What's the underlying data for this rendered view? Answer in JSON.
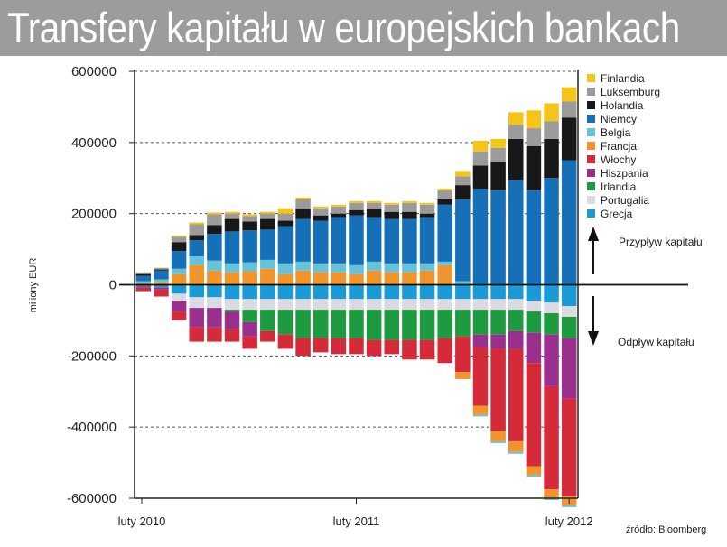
{
  "chart_data": {
    "type": "bar",
    "stacked": true,
    "title": "Transfery kapitału w europejskich bankach",
    "ylabel": "miliony EUR",
    "xlabel": "",
    "ylim": [
      -600000,
      600000
    ],
    "y_ticks": [
      600000,
      400000,
      200000,
      0,
      -200000,
      -400000,
      -600000
    ],
    "y_tick_labels": [
      "600000",
      "400000",
      "200000",
      "0",
      "-200000",
      "-400000",
      "-600000"
    ],
    "x_tick_labels": [
      {
        "label": "luty 2010",
        "index": 0
      },
      {
        "label": "luty 2011",
        "index": 12
      },
      {
        "label": "luty 2012",
        "index": 24
      }
    ],
    "legend_position": "top-right",
    "source": "źródło: Bloomberg",
    "annotations": {
      "inflow": "Przypływ kapitału",
      "outflow": "Odpływ kapitału"
    },
    "categories": [
      "02.2010",
      "03.2010",
      "04.2010",
      "05.2010",
      "06.2010",
      "07.2010",
      "08.2010",
      "09.2010",
      "10.2010",
      "11.2010",
      "12.2010",
      "01.2011",
      "02.2011",
      "03.2011",
      "04.2011",
      "05.2011",
      "06.2011",
      "07.2011",
      "08.2011",
      "09.2011",
      "10.2011",
      "11.2011",
      "12.2011",
      "01.2012",
      "02.2012"
    ],
    "series": [
      {
        "name": "Grecja",
        "color": "#1a9ad6",
        "values": [
          0,
          0,
          0,
          0,
          0,
          0,
          0,
          0,
          0,
          0,
          0,
          0,
          0,
          0,
          0,
          0,
          0,
          0,
          0,
          0,
          0,
          0,
          0,
          0,
          0
        ],
        "negatives": [
          -5000,
          -8000,
          -25000,
          -35000,
          -35000,
          -40000,
          -40000,
          -40000,
          -40000,
          -40000,
          -40000,
          -40000,
          -40000,
          -40000,
          -40000,
          -40000,
          -40000,
          -40000,
          -40000,
          -40000,
          -40000,
          -40000,
          -45000,
          -50000,
          -60000
        ]
      },
      {
        "name": "Portugalia",
        "color": "#dadae0",
        "values": [
          0,
          0,
          0,
          0,
          0,
          0,
          0,
          0,
          0,
          0,
          0,
          0,
          0,
          0,
          0,
          0,
          0,
          0,
          0,
          0,
          0,
          0,
          0,
          0,
          0
        ],
        "negatives": [
          0,
          0,
          -20000,
          -30000,
          -30000,
          -30000,
          -30000,
          -30000,
          -30000,
          -30000,
          -30000,
          -30000,
          -30000,
          -30000,
          -30000,
          -30000,
          -30000,
          -30000,
          -30000,
          -30000,
          -30000,
          -30000,
          -30000,
          -30000,
          -30000
        ]
      },
      {
        "name": "Irlandia",
        "color": "#1e9a40",
        "values": [
          0,
          0,
          0,
          0,
          0,
          0,
          0,
          0,
          0,
          0,
          0,
          0,
          0,
          0,
          0,
          0,
          0,
          0,
          0,
          0,
          0,
          0,
          0,
          0,
          0
        ],
        "negatives": [
          0,
          0,
          0,
          0,
          0,
          -5000,
          -35000,
          -60000,
          -70000,
          -80000,
          -80000,
          -80000,
          -80000,
          -85000,
          -85000,
          -85000,
          -85000,
          -80000,
          -75000,
          -70000,
          -70000,
          -60000,
          -60000,
          -60000,
          -60000
        ]
      },
      {
        "name": "Hiszpania",
        "color": "#9b2f8e",
        "values": [
          0,
          0,
          0,
          0,
          0,
          0,
          0,
          0,
          0,
          0,
          0,
          0,
          0,
          0,
          0,
          0,
          0,
          0,
          0,
          0,
          0,
          0,
          0,
          0,
          0
        ],
        "negatives": [
          -3000,
          -5000,
          -30000,
          -55000,
          -55000,
          -50000,
          -40000,
          0,
          0,
          0,
          0,
          0,
          0,
          0,
          0,
          0,
          0,
          0,
          0,
          -35000,
          -40000,
          -50000,
          -85000,
          -145000,
          -170000
        ]
      },
      {
        "name": "Włochy",
        "color": "#d42a3a",
        "values": [
          0,
          0,
          0,
          0,
          0,
          0,
          0,
          0,
          0,
          0,
          0,
          0,
          0,
          0,
          0,
          0,
          0,
          0,
          0,
          0,
          0,
          0,
          0,
          0,
          0
        ],
        "negatives": [
          -10000,
          -20000,
          -25000,
          -40000,
          -40000,
          -35000,
          -35000,
          -30000,
          -40000,
          -50000,
          -40000,
          -45000,
          -45000,
          -45000,
          -40000,
          -55000,
          -55000,
          -70000,
          -100000,
          -165000,
          -230000,
          -260000,
          -290000,
          -290000,
          -275000
        ]
      },
      {
        "name": "Francja",
        "color": "#f0952e",
        "values": [
          5000,
          8000,
          30000,
          55000,
          40000,
          35000,
          38000,
          45000,
          30000,
          40000,
          35000,
          35000,
          30000,
          40000,
          35000,
          35000,
          40000,
          55000,
          0,
          0,
          0,
          0,
          0,
          0,
          0
        ],
        "negatives": [
          0,
          0,
          0,
          0,
          0,
          0,
          0,
          0,
          0,
          0,
          0,
          0,
          0,
          0,
          0,
          0,
          0,
          0,
          -20000,
          -25000,
          -30000,
          -30000,
          -25000,
          -25000,
          -25000
        ]
      },
      {
        "name": "Belgia",
        "color": "#66c2d8",
        "values": [
          5000,
          7000,
          15000,
          25000,
          28000,
          25000,
          25000,
          25000,
          30000,
          25000,
          25000,
          25000,
          25000,
          25000,
          25000,
          25000,
          20000,
          10000,
          10000,
          0,
          0,
          0,
          0,
          0,
          0
        ],
        "negatives": [
          0,
          0,
          0,
          0,
          0,
          0,
          0,
          0,
          0,
          0,
          0,
          0,
          0,
          0,
          0,
          0,
          0,
          0,
          0,
          -5000,
          -5000,
          -5000,
          -5000,
          -5000,
          -5000
        ]
      },
      {
        "name": "Niemcy",
        "color": "#1570b8",
        "values": [
          15000,
          25000,
          50000,
          45000,
          75000,
          90000,
          90000,
          85000,
          105000,
          120000,
          120000,
          130000,
          140000,
          125000,
          125000,
          125000,
          130000,
          160000,
          230000,
          270000,
          265000,
          295000,
          265000,
          300000,
          350000
        ],
        "negatives": [
          0,
          0,
          0,
          0,
          0,
          0,
          0,
          0,
          0,
          0,
          0,
          0,
          0,
          0,
          0,
          0,
          0,
          0,
          0,
          0,
          0,
          0,
          0,
          0,
          0
        ]
      },
      {
        "name": "Holandia",
        "color": "#181818",
        "values": [
          5000,
          3000,
          25000,
          15000,
          25000,
          35000,
          25000,
          30000,
          15000,
          30000,
          15000,
          10000,
          15000,
          25000,
          20000,
          20000,
          10000,
          15000,
          40000,
          65000,
          80000,
          115000,
          125000,
          110000,
          120000
        ],
        "negatives": [
          0,
          0,
          0,
          0,
          0,
          0,
          0,
          0,
          0,
          0,
          0,
          0,
          0,
          0,
          0,
          0,
          0,
          0,
          0,
          0,
          0,
          0,
          0,
          0,
          0
        ]
      },
      {
        "name": "Luksemburg",
        "color": "#9b9b9b",
        "values": [
          4000,
          4000,
          15000,
          30000,
          30000,
          15000,
          15000,
          15000,
          20000,
          25000,
          20000,
          20000,
          20000,
          15000,
          20000,
          25000,
          25000,
          25000,
          25000,
          40000,
          40000,
          40000,
          50000,
          50000,
          45000
        ],
        "negatives": [
          0,
          0,
          0,
          0,
          0,
          0,
          0,
          0,
          0,
          0,
          0,
          0,
          0,
          0,
          0,
          0,
          0,
          0,
          0,
          0,
          0,
          0,
          0,
          0,
          0
        ]
      },
      {
        "name": "Finlandia",
        "color": "#f5c418",
        "values": [
          1000,
          1000,
          3000,
          5000,
          5000,
          5000,
          5000,
          5000,
          15000,
          5000,
          5000,
          5000,
          5000,
          5000,
          5000,
          5000,
          5000,
          5000,
          15000,
          30000,
          25000,
          35000,
          50000,
          50000,
          40000
        ],
        "negatives": [
          0,
          0,
          0,
          0,
          0,
          0,
          0,
          0,
          0,
          0,
          0,
          0,
          0,
          0,
          0,
          0,
          0,
          0,
          0,
          0,
          0,
          0,
          0,
          0,
          0
        ]
      }
    ]
  }
}
